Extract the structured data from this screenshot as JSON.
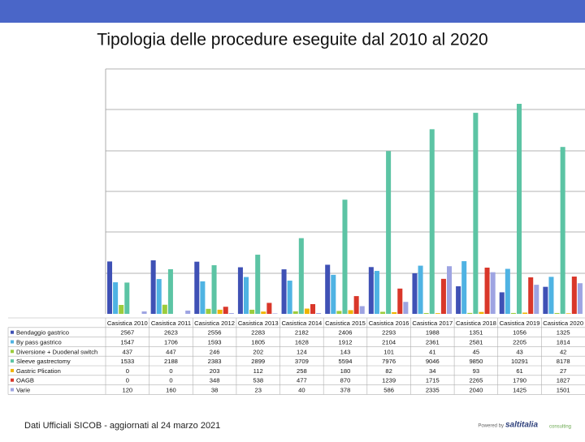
{
  "chart_data": {
    "type": "bar",
    "title": "Tipologia delle procedure eseguite dal 2010 al 2020",
    "categories": [
      "Casistica 2010",
      "Casistica 2011",
      "Casistica 2012",
      "Casistica 2013",
      "Casistica 2014",
      "Casistica 2015",
      "Casistica 2016",
      "Casistica 2017",
      "Casistica 2018",
      "Casistica 2019",
      "Casistica 2020"
    ],
    "series": [
      {
        "name": "Bendaggio gastrico",
        "color": "#3f51b5",
        "values": [
          2567,
          2623,
          2556,
          2283,
          2182,
          2406,
          2293,
          1988,
          1351,
          1056,
          1325
        ]
      },
      {
        "name": "By pass gastrico",
        "color": "#4fb3e3",
        "values": [
          1547,
          1706,
          1593,
          1805,
          1628,
          1912,
          2104,
          2361,
          2581,
          2205,
          1814
        ]
      },
      {
        "name": "Diversione + Duodenal switch",
        "color": "#9ccc3c",
        "values": [
          437,
          447,
          246,
          202,
          124,
          143,
          101,
          41,
          45,
          43,
          42
        ]
      },
      {
        "name": "Sleeve gastrectomy",
        "color": "#5cc4a4",
        "values": [
          1533,
          2188,
          2383,
          2899,
          3709,
          5594,
          7976,
          9046,
          9850,
          10291,
          8178
        ]
      },
      {
        "name": "Gastric Plication",
        "color": "#f0b400",
        "values": [
          0,
          0,
          203,
          112,
          258,
          180,
          82,
          34,
          93,
          61,
          27
        ]
      },
      {
        "name": "OAGB",
        "color": "#d9372a",
        "values": [
          0,
          0,
          348,
          538,
          477,
          870,
          1239,
          1715,
          2265,
          1790,
          1827
        ]
      },
      {
        "name": "Varie",
        "color": "#9ea4e2",
        "values": [
          120,
          160,
          38,
          23,
          40,
          378,
          586,
          2335,
          2040,
          1425,
          1501
        ]
      }
    ],
    "ylim": [
      0,
      12000
    ]
  },
  "footer": {
    "source": "Dati Ufficiali SICOB - aggiornati al 24 marzo 2021",
    "logo_prefix": "Powered by",
    "logo": "saltitalia",
    "logo_suffix": "consulting"
  }
}
